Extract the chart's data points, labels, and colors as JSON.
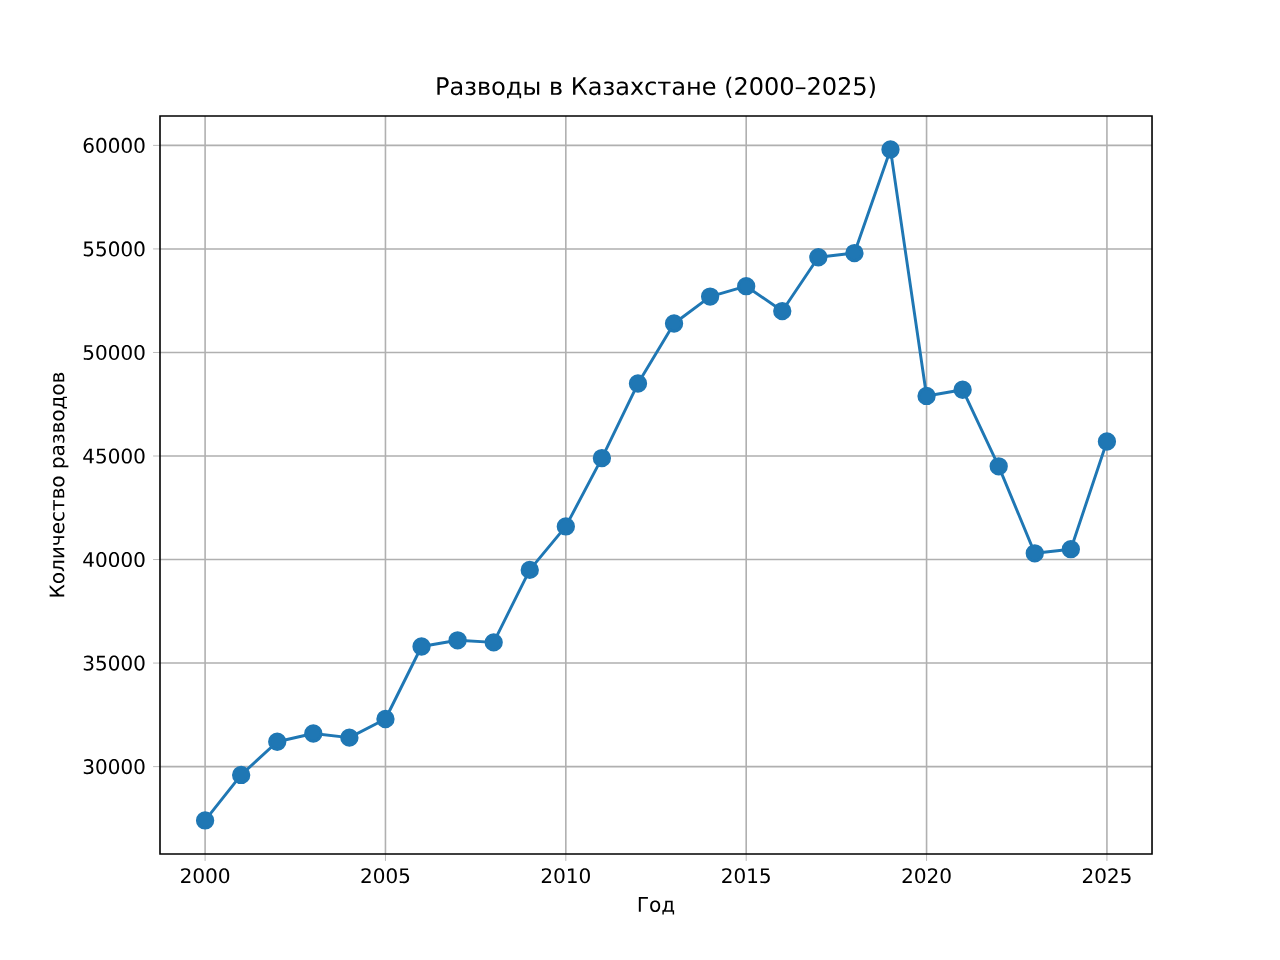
{
  "chart_data": {
    "type": "line",
    "title": "Разводы в Казахстане (2000–2025)",
    "xlabel": "Год",
    "ylabel": "Количество разводов",
    "x": [
      2000,
      2001,
      2002,
      2003,
      2004,
      2005,
      2006,
      2007,
      2008,
      2009,
      2010,
      2011,
      2012,
      2013,
      2014,
      2015,
      2016,
      2017,
      2018,
      2019,
      2020,
      2021,
      2022,
      2023,
      2024,
      2025
    ],
    "series": [
      {
        "color": "#1f77b4",
        "values": [
          27400,
          29600,
          31200,
          31600,
          31400,
          32300,
          35800,
          36100,
          36000,
          39500,
          41600,
          44900,
          48500,
          51400,
          52700,
          53200,
          52000,
          54600,
          54800,
          59800,
          47900,
          48200,
          44500,
          40300,
          40500,
          45700
        ]
      }
    ],
    "xlim": [
      1998.75,
      2026.25
    ],
    "xticks": [
      2000,
      2005,
      2010,
      2015,
      2020,
      2025
    ],
    "ylim": [
      25780,
      61420
    ],
    "yticks": [
      30000,
      35000,
      40000,
      45000,
      50000,
      55000,
      60000
    ],
    "grid": true,
    "marker": "circle",
    "line_style": "solid"
  }
}
